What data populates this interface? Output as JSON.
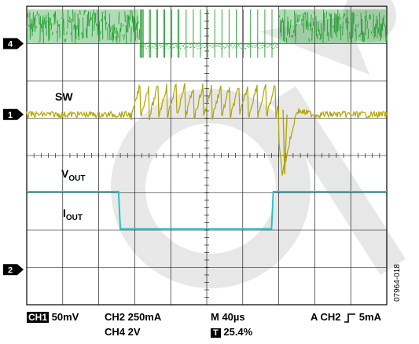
{
  "chart_data": {
    "type": "line",
    "title": "",
    "grid": true,
    "divisions": {
      "x": 10,
      "y": 8
    },
    "ground_markers": [
      {
        "label": "4",
        "division_from_top": 1.0
      },
      {
        "label": "1",
        "division_from_top": 2.9
      },
      {
        "label": "2",
        "division_from_top": 5.6
      }
    ],
    "series": [
      {
        "name": "SW",
        "channel": 4,
        "color": "#1c9c2a",
        "description_points": [
          [
            0,
            "switching"
          ],
          [
            3.2,
            "burst"
          ],
          [
            7.0,
            "switching"
          ]
        ]
      },
      {
        "name": "VOUT",
        "channel": 1,
        "color": "#b2a500",
        "x": [
          0,
          2.9,
          3.2,
          3.5,
          4.0,
          4.5,
          5.0,
          5.5,
          6.0,
          6.5,
          6.9,
          7.1,
          7.5,
          8.0,
          10
        ],
        "y": [
          0,
          0,
          0.7,
          0.1,
          0.8,
          0.2,
          0.8,
          0.1,
          0.7,
          0.1,
          0.2,
          -1.6,
          0.1,
          0,
          0
        ]
      },
      {
        "name": "IOUT",
        "channel": 2,
        "color": "#26c3c8",
        "x": [
          0,
          2.55,
          2.6,
          6.8,
          6.85,
          10
        ],
        "y": [
          0,
          0,
          -0.95,
          -0.95,
          0,
          0
        ]
      }
    ],
    "labels": {
      "sw": "SW",
      "vout_main": "V",
      "vout_sub": "OUT",
      "iout_main": "I",
      "iout_sub": "OUT"
    }
  },
  "footer": {
    "ch1_badge": "CH1",
    "ch1_scale": "50mV",
    "ch2_scale": "CH2  250mA",
    "ch4_scale": "CH4 2V",
    "time_scale": "M 40µs",
    "t_badge": "T",
    "trigger_pos": "25.4%",
    "trigger": "A  CH2",
    "trigger_level": "5mA",
    "figure_id": "07964-018"
  }
}
